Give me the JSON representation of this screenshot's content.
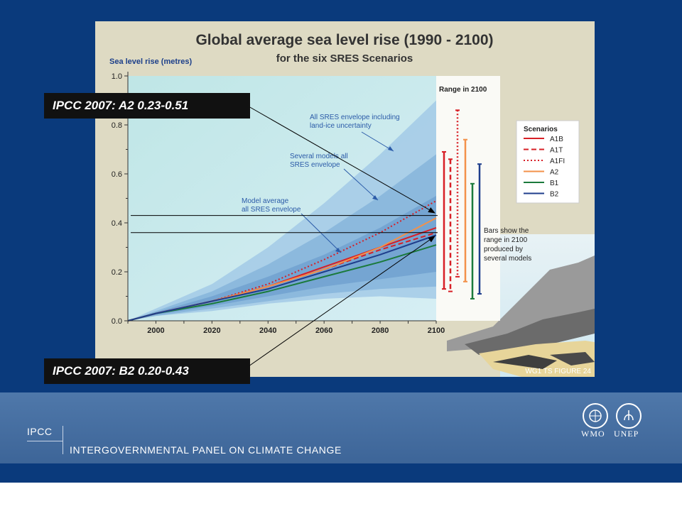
{
  "figure": {
    "title": "Global average sea level rise (1990 - 2100)",
    "subtitle": "for the six SRES Scenarios",
    "figure_label": "WG1 TS FIGURE 24"
  },
  "annotations": {
    "envelope_all": [
      "All SRES envelope including",
      "land-ice uncertainty"
    ],
    "envelope_several": [
      "Several models all",
      "SRES envelope"
    ],
    "model_average": [
      "Model average",
      "all SRES envelope"
    ],
    "range_title": "Range in 2100",
    "bars_note": [
      "Bars show  the",
      "range in 2100",
      "produced by",
      "several models"
    ]
  },
  "callouts": {
    "a2": "IPCC 2007: A2 0.23-0.51",
    "b2": "IPCC 2007: B2 0.20-0.43"
  },
  "footer": {
    "ipcc_abbr": "IPCC",
    "ipcc_full": "INTERGOVERNMENTAL PANEL ON CLIMATE CHANGE",
    "wmo": "WMO",
    "unep": "UNEP"
  },
  "chart_data": {
    "type": "line",
    "title": "Global average sea level rise (1990 - 2100)",
    "subtitle": "for the six SRES Scenarios",
    "ylabel": "Sea level rise (metres)",
    "xlim": [
      1990,
      2100
    ],
    "ylim": [
      0,
      1.0
    ],
    "x_ticks": [
      2000,
      2020,
      2040,
      2060,
      2080,
      2100
    ],
    "y_ticks": [
      0.0,
      0.2,
      0.4,
      0.6,
      0.8,
      1.0
    ],
    "legend_title": "Scenarios",
    "legend_position": "right",
    "series": [
      {
        "name": "A1B",
        "color": "#d71f26",
        "dash": "solid",
        "x": [
          1990,
          2000,
          2020,
          2040,
          2060,
          2080,
          2100
        ],
        "y": [
          0,
          0.03,
          0.08,
          0.14,
          0.22,
          0.3,
          0.38
        ]
      },
      {
        "name": "A1T",
        "color": "#d71f26",
        "dash": "dashed",
        "x": [
          1990,
          2000,
          2020,
          2040,
          2060,
          2080,
          2100
        ],
        "y": [
          0,
          0.03,
          0.08,
          0.14,
          0.21,
          0.29,
          0.36
        ]
      },
      {
        "name": "A1FI",
        "color": "#d71f26",
        "dash": "dotted",
        "x": [
          1990,
          2000,
          2020,
          2040,
          2060,
          2080,
          2100
        ],
        "y": [
          0,
          0.03,
          0.08,
          0.15,
          0.25,
          0.36,
          0.49
        ]
      },
      {
        "name": "A2",
        "color": "#f3914a",
        "dash": "solid",
        "x": [
          1990,
          2000,
          2020,
          2040,
          2060,
          2080,
          2100
        ],
        "y": [
          0,
          0.03,
          0.08,
          0.14,
          0.21,
          0.3,
          0.42
        ]
      },
      {
        "name": "B1",
        "color": "#1b7a3c",
        "dash": "solid",
        "x": [
          1990,
          2000,
          2020,
          2040,
          2060,
          2080,
          2100
        ],
        "y": [
          0,
          0.03,
          0.07,
          0.12,
          0.18,
          0.24,
          0.31
        ]
      },
      {
        "name": "B2",
        "color": "#1f3e8c",
        "dash": "solid",
        "x": [
          1990,
          2000,
          2020,
          2040,
          2060,
          2080,
          2100
        ],
        "y": [
          0,
          0.03,
          0.08,
          0.13,
          0.2,
          0.27,
          0.35
        ]
      }
    ],
    "envelopes": [
      {
        "name": "All SRES envelope including land-ice uncertainty",
        "color": "#9dc6e6",
        "x": [
          1990,
          2000,
          2020,
          2040,
          2060,
          2080,
          2100
        ],
        "low": [
          0,
          0.02,
          0.04,
          0.07,
          0.09,
          0.1,
          0.09
        ],
        "high": [
          0,
          0.05,
          0.15,
          0.3,
          0.48,
          0.68,
          0.9
        ]
      },
      {
        "name": "Several models all SRES envelope",
        "color": "#82b1da",
        "x": [
          1990,
          2000,
          2020,
          2040,
          2060,
          2080,
          2100
        ],
        "low": [
          0,
          0.02,
          0.05,
          0.08,
          0.11,
          0.13,
          0.14
        ],
        "high": [
          0,
          0.04,
          0.12,
          0.23,
          0.36,
          0.51,
          0.68
        ]
      },
      {
        "name": "Model average all SRES envelope",
        "color": "#6d9fce",
        "x": [
          1990,
          2000,
          2020,
          2040,
          2060,
          2080,
          2100
        ],
        "low": [
          0,
          0.025,
          0.06,
          0.1,
          0.14,
          0.17,
          0.2
        ],
        "high": [
          0,
          0.035,
          0.1,
          0.18,
          0.27,
          0.38,
          0.51
        ]
      }
    ],
    "range_bars_2100": [
      {
        "name": "A1B",
        "color": "#d71f26",
        "dash": "solid",
        "low": 0.13,
        "high": 0.69
      },
      {
        "name": "A1T",
        "color": "#d71f26",
        "dash": "dashed",
        "low": 0.12,
        "high": 0.66
      },
      {
        "name": "A1FI",
        "color": "#d71f26",
        "dash": "dotted",
        "low": 0.18,
        "high": 0.86
      },
      {
        "name": "A2",
        "color": "#f3914a",
        "dash": "solid",
        "low": 0.16,
        "high": 0.74
      },
      {
        "name": "B1",
        "color": "#1b7a3c",
        "dash": "solid",
        "low": 0.09,
        "high": 0.56
      },
      {
        "name": "B2",
        "color": "#1f3e8c",
        "dash": "solid",
        "low": 0.11,
        "high": 0.64
      }
    ],
    "reference_lines_y": [
      0.43,
      0.36
    ]
  }
}
